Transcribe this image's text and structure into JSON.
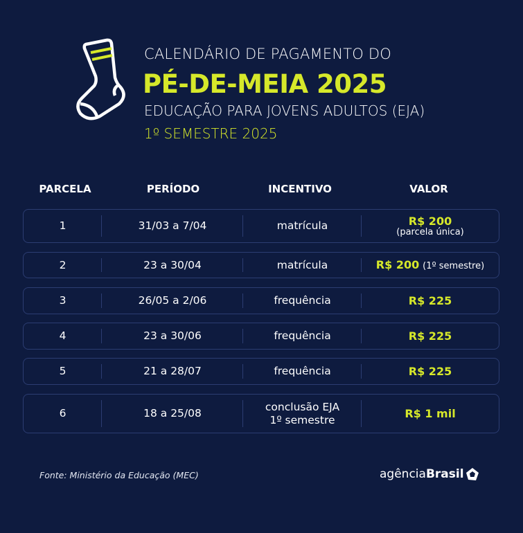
{
  "header": {
    "line1": "CALENDÁRIO DE PAGAMENTO DO",
    "line2": "PÉ-DE-MEIA 2025",
    "line3": "EDUCAÇÃO PARA JOVENS ADULTOS (EJA)",
    "line4": "1º SEMESTRE 2025",
    "icon": "sock-icon"
  },
  "table": {
    "columns": [
      "PARCELA",
      "PERÍODO",
      "INCENTIVO",
      "VALOR"
    ],
    "rows": [
      {
        "parcela": "1",
        "periodo": "31/03 a 7/04",
        "incentivo": [
          "matrícula"
        ],
        "valor": "R$ 200",
        "nota": "(parcela única)"
      },
      {
        "parcela": "2",
        "periodo": "23 a 30/04",
        "incentivo": [
          "matrícula"
        ],
        "valor": "R$ 200",
        "nota": "(1º semestre)"
      },
      {
        "parcela": "3",
        "periodo": "26/05 a 2/06",
        "incentivo": [
          "frequência"
        ],
        "valor": "R$ 225"
      },
      {
        "parcela": "4",
        "periodo": "23 a 30/06",
        "incentivo": [
          "frequência"
        ],
        "valor": "R$ 225"
      },
      {
        "parcela": "5",
        "periodo": "21 a 28/07",
        "incentivo": [
          "frequência"
        ],
        "valor": "R$ 225"
      },
      {
        "parcela": "6",
        "periodo": "18 a 25/08",
        "incentivo": [
          "conclusão EJA",
          "1º semestre"
        ],
        "valor": "R$ 1 mil"
      }
    ]
  },
  "footer": {
    "source": "Fonte: Ministério da Educação (MEC)",
    "logo_light": "agência",
    "logo_bold": "Brasil"
  },
  "colors": {
    "background": "#0e1b3f",
    "accent": "#d6e82a",
    "border": "#2c3d72"
  }
}
